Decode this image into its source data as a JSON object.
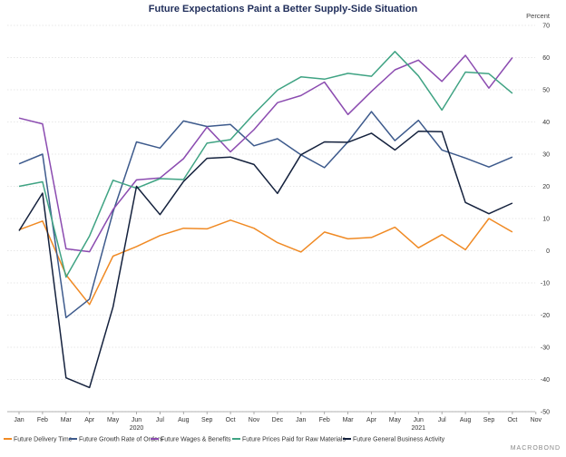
{
  "chart_data": {
    "type": "line",
    "title": "Future Expectations Paint a Better Supply-Side Situation",
    "ylabel": "Percent",
    "ylim": [
      -50,
      70
    ],
    "yticks": [
      -50,
      -40,
      -30,
      -20,
      -10,
      0,
      10,
      20,
      30,
      40,
      50,
      60,
      70
    ],
    "x": [
      "Jan",
      "Feb",
      "Mar",
      "Apr",
      "May",
      "Jun",
      "Jul",
      "Aug",
      "Sep",
      "Oct",
      "Nov",
      "Dec",
      "Jan",
      "Feb",
      "Mar",
      "Apr",
      "May",
      "Jun",
      "Jul",
      "Aug",
      "Sep",
      "Oct",
      "Nov"
    ],
    "year_labels": [
      {
        "index": 5,
        "label": "2020"
      },
      {
        "index": 17,
        "label": "2021"
      }
    ],
    "grid": true,
    "legend_position": "bottom",
    "series": [
      {
        "name": "Future Delivery Time",
        "color": "#f08a24",
        "values": [
          6.5,
          9.2,
          -7.5,
          -16.7,
          -1.7,
          1.3,
          4.7,
          7.0,
          6.8,
          9.5,
          7.0,
          2.5,
          -0.4,
          5.8,
          3.7,
          4.1,
          7.3,
          0.9,
          5.0,
          0.3,
          10.0,
          5.8,
          null
        ]
      },
      {
        "name": "Future Growth Rate of Orders",
        "color": "#3d5a8c",
        "values": [
          27.0,
          30.0,
          -20.8,
          -15.0,
          12.0,
          33.8,
          31.9,
          40.3,
          38.6,
          39.2,
          32.6,
          34.8,
          29.8,
          25.8,
          33.8,
          43.2,
          34.2,
          40.5,
          31.3,
          28.8,
          26.0,
          29.1,
          null
        ]
      },
      {
        "name": "Future Wages & Benefits",
        "color": "#8b4bb0",
        "values": [
          41.2,
          39.4,
          0.6,
          -0.3,
          12.8,
          22.0,
          22.6,
          28.6,
          38.4,
          30.7,
          37.6,
          46.0,
          48.2,
          52.4,
          42.3,
          49.5,
          56.2,
          59.2,
          52.6,
          60.7,
          50.5,
          60.0,
          null
        ]
      },
      {
        "name": "Future Prices Paid for Raw Materials",
        "color": "#3fa383",
        "values": [
          20.0,
          21.4,
          -8.2,
          4.6,
          21.9,
          19.4,
          22.4,
          22.1,
          33.4,
          34.5,
          42.5,
          49.9,
          54.0,
          53.3,
          55.1,
          54.2,
          61.9,
          54.3,
          43.7,
          55.5,
          55.0,
          48.9,
          null
        ]
      },
      {
        "name": "Future General Business Activity",
        "color": "#14213d",
        "values": [
          6.2,
          17.9,
          -39.5,
          -42.5,
          -17.5,
          20.0,
          11.2,
          21.5,
          28.7,
          29.1,
          26.8,
          17.8,
          29.8,
          33.8,
          33.7,
          36.5,
          31.3,
          37.1,
          37.0,
          15.0,
          11.5,
          14.8,
          null
        ]
      }
    ]
  },
  "brand": "MACROBOND"
}
